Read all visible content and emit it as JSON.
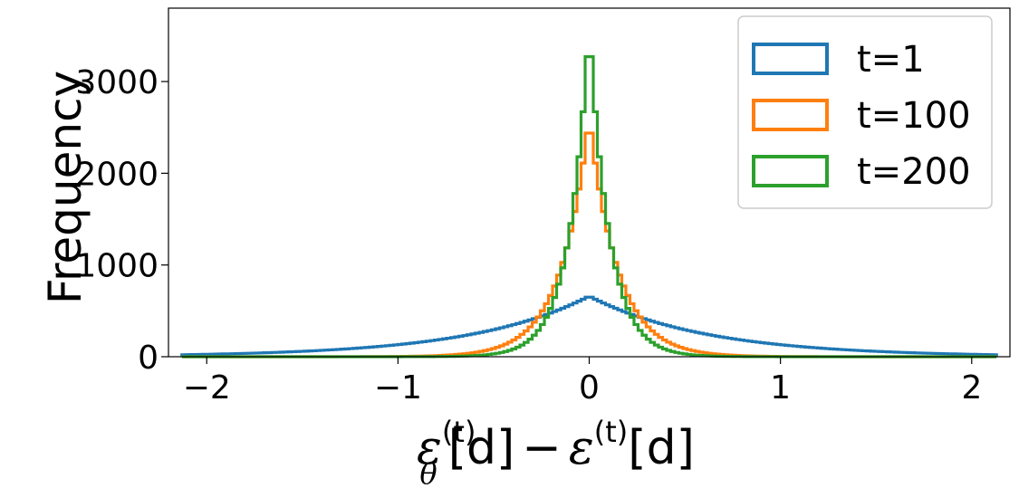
{
  "chart_data": {
    "type": "histogram",
    "xlabel": "ε_θ^(t)[d] − ε^(t)[d]",
    "xlabel_parts": {
      "eps1": "ε",
      "sub_theta": "θ",
      "sup_t1": "(t)",
      "brk1": "[d]",
      "minus": "−",
      "eps2": "ε",
      "sup_t2": "(t)",
      "brk2": "[d]"
    },
    "ylabel": "Frequency",
    "xlim": [
      -2.2,
      2.2
    ],
    "ylim": [
      0,
      3800
    ],
    "x_ticks": [
      -2,
      -1,
      0,
      1,
      2
    ],
    "x_tick_labels": [
      "−2",
      "−1",
      "0",
      "1",
      "2"
    ],
    "y_ticks": [
      0,
      1000,
      2000,
      3000
    ],
    "y_tick_labels": [
      "0",
      "1000",
      "2000",
      "3000"
    ],
    "bin_range": [
      -2.13,
      2.13
    ],
    "bin_count": 200,
    "legend_position": "upper right",
    "grid": false,
    "series": [
      {
        "name": "t=1",
        "color": "#1f77b4",
        "distribution": "laplace",
        "peak": 660,
        "scale": 0.62
      },
      {
        "name": "t=100",
        "color": "#ff7f0e",
        "distribution": "laplace",
        "peak": 2620,
        "scale": 0.148
      },
      {
        "name": "t=200",
        "color": "#2ca02c",
        "distribution": "laplace",
        "peak": 3620,
        "scale": 0.105
      }
    ]
  }
}
